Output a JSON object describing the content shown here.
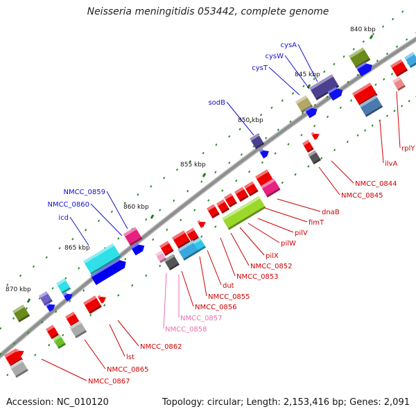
{
  "title": "Neisseria meningitidis 053442, complete genome",
  "footer": {
    "accession": "Accession: NC_010120",
    "topology": "Topology: circular; Length: 2,153,416 bp; Genes: 2,091"
  },
  "colors": {
    "backbone": "#8e8e8e",
    "tick": "#2d8a2d",
    "label_blue": "#1010cc",
    "label_red": "#cc0000",
    "label_pink": "#e86fae"
  },
  "scale_labels": [
    "840 kbp",
    "845 kbp",
    "850 kbp",
    "855 kbp",
    "860 kbp",
    "865 kbp",
    "870 kbp"
  ],
  "genes_top": [
    {
      "label": "cysA",
      "color": "#4b3f8f"
    },
    {
      "label": "cysW",
      "color": "#4b3f8f"
    },
    {
      "label": "cysT",
      "color": "#b0a865"
    },
    {
      "label": "sodB",
      "color": "#4b3f8f"
    },
    {
      "label": "NMCC_0859",
      "color": "#e8207e"
    },
    {
      "label": "NMCC_0860",
      "color": "#0000ee"
    },
    {
      "label": "icd",
      "color": "#30e0e8"
    }
  ],
  "genes_bottom": [
    {
      "label": "rplY",
      "color": "#ee0000"
    },
    {
      "label": "ilvA",
      "color": "#ee0000"
    },
    {
      "label": "NMCC_0844",
      "color": "#ee0000"
    },
    {
      "label": "NMCC_0845",
      "color": "#555555"
    },
    {
      "label": "dnaB",
      "color": "#ee0000"
    },
    {
      "label": "fimT",
      "color": "#e8207e"
    },
    {
      "label": "pilV",
      "color": "#9ad82a"
    },
    {
      "label": "pilW",
      "color": "#ee0000"
    },
    {
      "label": "pilX",
      "color": "#ee0000"
    },
    {
      "label": "NMCC_0852",
      "color": "#ee0000"
    },
    {
      "label": "NMCC_0853",
      "color": "#ee0000"
    },
    {
      "label": "dut",
      "color": "#ee0000"
    },
    {
      "label": "NMCC_0855",
      "color": "#38a8e0"
    },
    {
      "label": "NMCC_0856",
      "color": "#555555"
    },
    {
      "label": "NMCC_0857",
      "color": "#f0a0c8"
    },
    {
      "label": "NMCC_0858",
      "color": "#f0a0c8"
    },
    {
      "label": "NMCC_0862",
      "color": "#ee0000"
    },
    {
      "label": "lst",
      "color": "#ee0000"
    },
    {
      "label": "NMCC_0865",
      "color": "#ee0000"
    },
    {
      "label": "NMCC_0867",
      "color": "#ee0000"
    }
  ]
}
